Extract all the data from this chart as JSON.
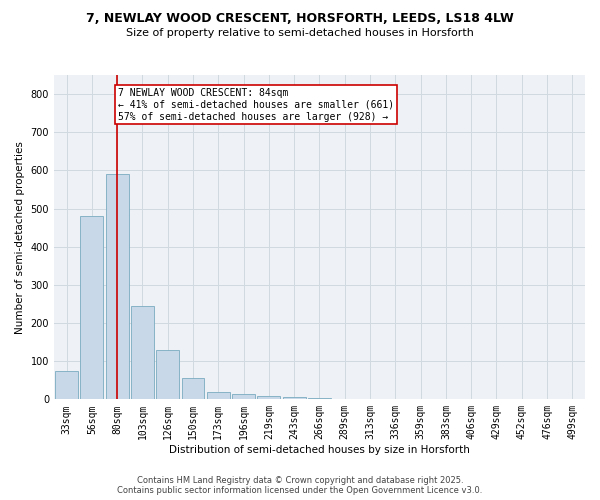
{
  "title_line1": "7, NEWLAY WOOD CRESCENT, HORSFORTH, LEEDS, LS18 4LW",
  "title_line2": "Size of property relative to semi-detached houses in Horsforth",
  "xlabel": "Distribution of semi-detached houses by size in Horsforth",
  "ylabel": "Number of semi-detached properties",
  "categories": [
    "33sqm",
    "56sqm",
    "80sqm",
    "103sqm",
    "126sqm",
    "150sqm",
    "173sqm",
    "196sqm",
    "219sqm",
    "243sqm",
    "266sqm",
    "289sqm",
    "313sqm",
    "336sqm",
    "359sqm",
    "383sqm",
    "406sqm",
    "429sqm",
    "452sqm",
    "476sqm",
    "499sqm"
  ],
  "values": [
    75,
    480,
    590,
    245,
    130,
    55,
    20,
    15,
    10,
    7,
    3,
    0,
    0,
    0,
    0,
    0,
    0,
    0,
    0,
    0,
    0
  ],
  "bar_color": "#c8d8e8",
  "bar_edge_color": "#7aaabf",
  "vline_x": 2.0,
  "vline_color": "#cc0000",
  "annotation_text": "7 NEWLAY WOOD CRESCENT: 84sqm\n← 41% of semi-detached houses are smaller (661)\n57% of semi-detached houses are larger (928) →",
  "annotation_box_color": "#ffffff",
  "annotation_box_edge": "#cc0000",
  "ylim": [
    0,
    850
  ],
  "yticks": [
    0,
    100,
    200,
    300,
    400,
    500,
    600,
    700,
    800
  ],
  "grid_color": "#d0d8e0",
  "bg_color": "#eef2f6",
  "footer_line1": "Contains HM Land Registry data © Crown copyright and database right 2025.",
  "footer_line2": "Contains public sector information licensed under the Open Government Licence v3.0.",
  "title_fontsize": 9,
  "subtitle_fontsize": 8,
  "axis_label_fontsize": 7.5,
  "tick_fontsize": 7,
  "annotation_fontsize": 7,
  "footer_fontsize": 6
}
